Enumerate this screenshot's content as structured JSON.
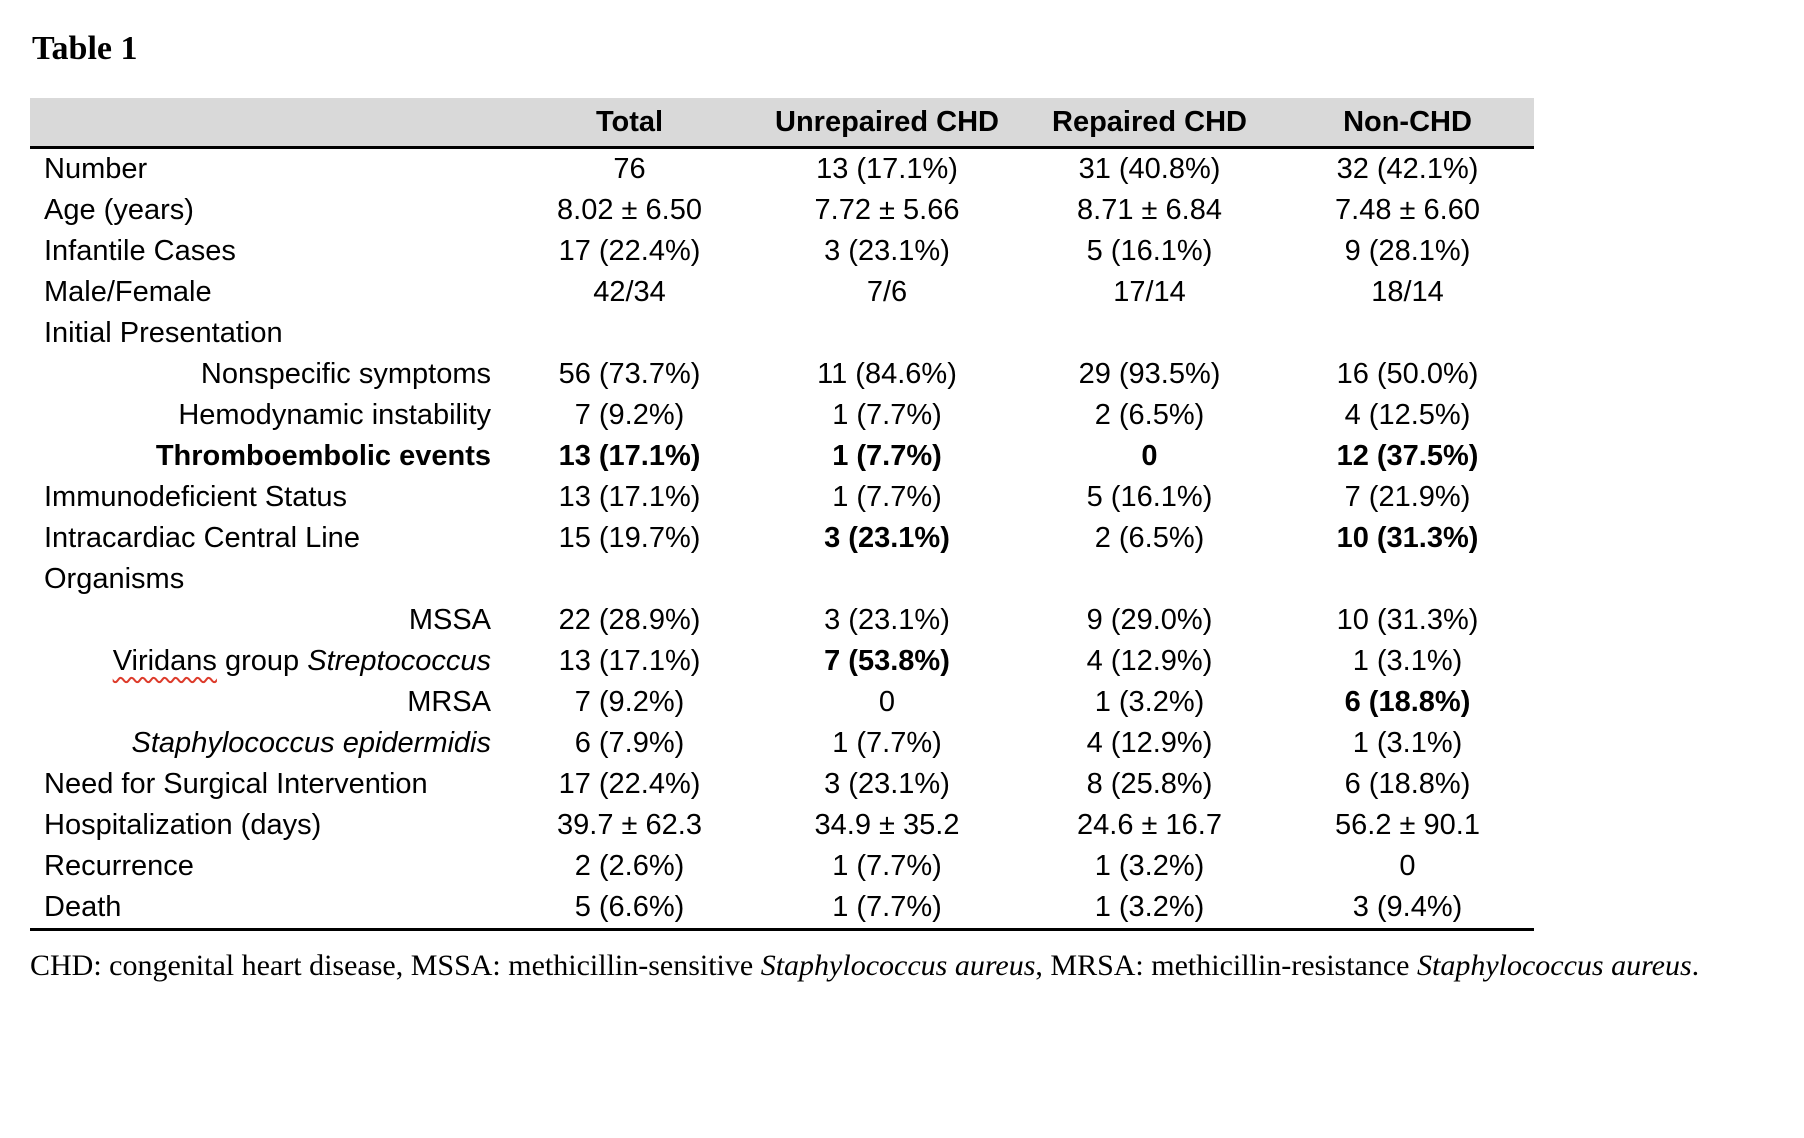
{
  "title": "Table 1",
  "table": {
    "columns": [
      "",
      "Total",
      "Unrepaired CHD",
      "Repaired CHD",
      "Non-CHD"
    ],
    "rows": [
      {
        "label": "Number",
        "values": [
          "76",
          "13 (17.1%)",
          "31 (40.8%)",
          "32 (42.1%)"
        ]
      },
      {
        "label": "Age (years)",
        "values": [
          "8.02 ± 6.50",
          "7.72 ± 5.66",
          "8.71 ± 6.84",
          "7.48 ± 6.60"
        ]
      },
      {
        "label": "Infantile Cases",
        "values": [
          "17 (22.4%)",
          "3 (23.1%)",
          "5 (16.1%)",
          "9 (28.1%)"
        ]
      },
      {
        "label": "Male/Female",
        "values": [
          "42/34",
          "7/6",
          "17/14",
          "18/14"
        ]
      },
      {
        "label": "Initial Presentation",
        "values": [
          "",
          "",
          "",
          ""
        ]
      },
      {
        "label": "Nonspecific symptoms",
        "values": [
          "56 (73.7%)",
          "11 (84.6%)",
          "29 (93.5%)",
          "16 (50.0%)"
        ]
      },
      {
        "label": "Hemodynamic instability",
        "values": [
          "7 (9.2%)",
          "1 (7.7%)",
          "2 (6.5%)",
          "4 (12.5%)"
        ]
      },
      {
        "label": "Thromboembolic events",
        "values": [
          "13 (17.1%)",
          "1 (7.7%)",
          "0",
          "12 (37.5%)"
        ]
      },
      {
        "label": "Immunodeficient Status",
        "values": [
          "13 (17.1%)",
          "1 (7.7%)",
          "5 (16.1%)",
          "7 (21.9%)"
        ]
      },
      {
        "label": "Intracardiac Central Line",
        "values": [
          "15 (19.7%)",
          "3 (23.1%)",
          "2 (6.5%)",
          "10 (31.3%)"
        ]
      },
      {
        "label": "Organisms",
        "values": [
          "",
          "",
          "",
          ""
        ]
      },
      {
        "label": "MSSA",
        "values": [
          "22 (28.9%)",
          "3 (23.1%)",
          "9 (29.0%)",
          "10 (31.3%)"
        ]
      },
      {
        "label_parts": [
          "Viridans",
          "group",
          "Streptococcus"
        ],
        "values": [
          "13 (17.1%)",
          "7 (53.8%)",
          "4 (12.9%)",
          "1 (3.1%)"
        ]
      },
      {
        "label": "MRSA",
        "values": [
          "7 (9.2%)",
          "0",
          "1 (3.2%)",
          "6 (18.8%)"
        ]
      },
      {
        "label": "Staphylococcus epidermidis",
        "values": [
          "6 (7.9%)",
          "1 (7.7%)",
          "4 (12.9%)",
          "1 (3.1%)"
        ]
      },
      {
        "label": "Need for Surgical Intervention",
        "values": [
          "17 (22.4%)",
          "3 (23.1%)",
          "8 (25.8%)",
          "6 (18.8%)"
        ]
      },
      {
        "label": "Hospitalization (days)",
        "values": [
          "39.7 ± 62.3",
          "34.9 ± 35.2",
          "24.6 ± 16.7",
          "56.2 ± 90.1"
        ]
      },
      {
        "label": "Recurrence",
        "values": [
          "2 (2.6%)",
          "1 (7.7%)",
          "1 (3.2%)",
          "0"
        ]
      },
      {
        "label": "Death",
        "values": [
          "5 (6.6%)",
          "1 (7.7%)",
          "1 (3.2%)",
          "3 (9.4%)"
        ]
      }
    ]
  },
  "footnote": {
    "parts": [
      "CHD: congenital heart disease, MSSA: methicillin-sensitive ",
      "Staphylococcus aureus",
      ", MRSA: methicillin-resistance ",
      "Staphylococcus aureus",
      "."
    ]
  }
}
